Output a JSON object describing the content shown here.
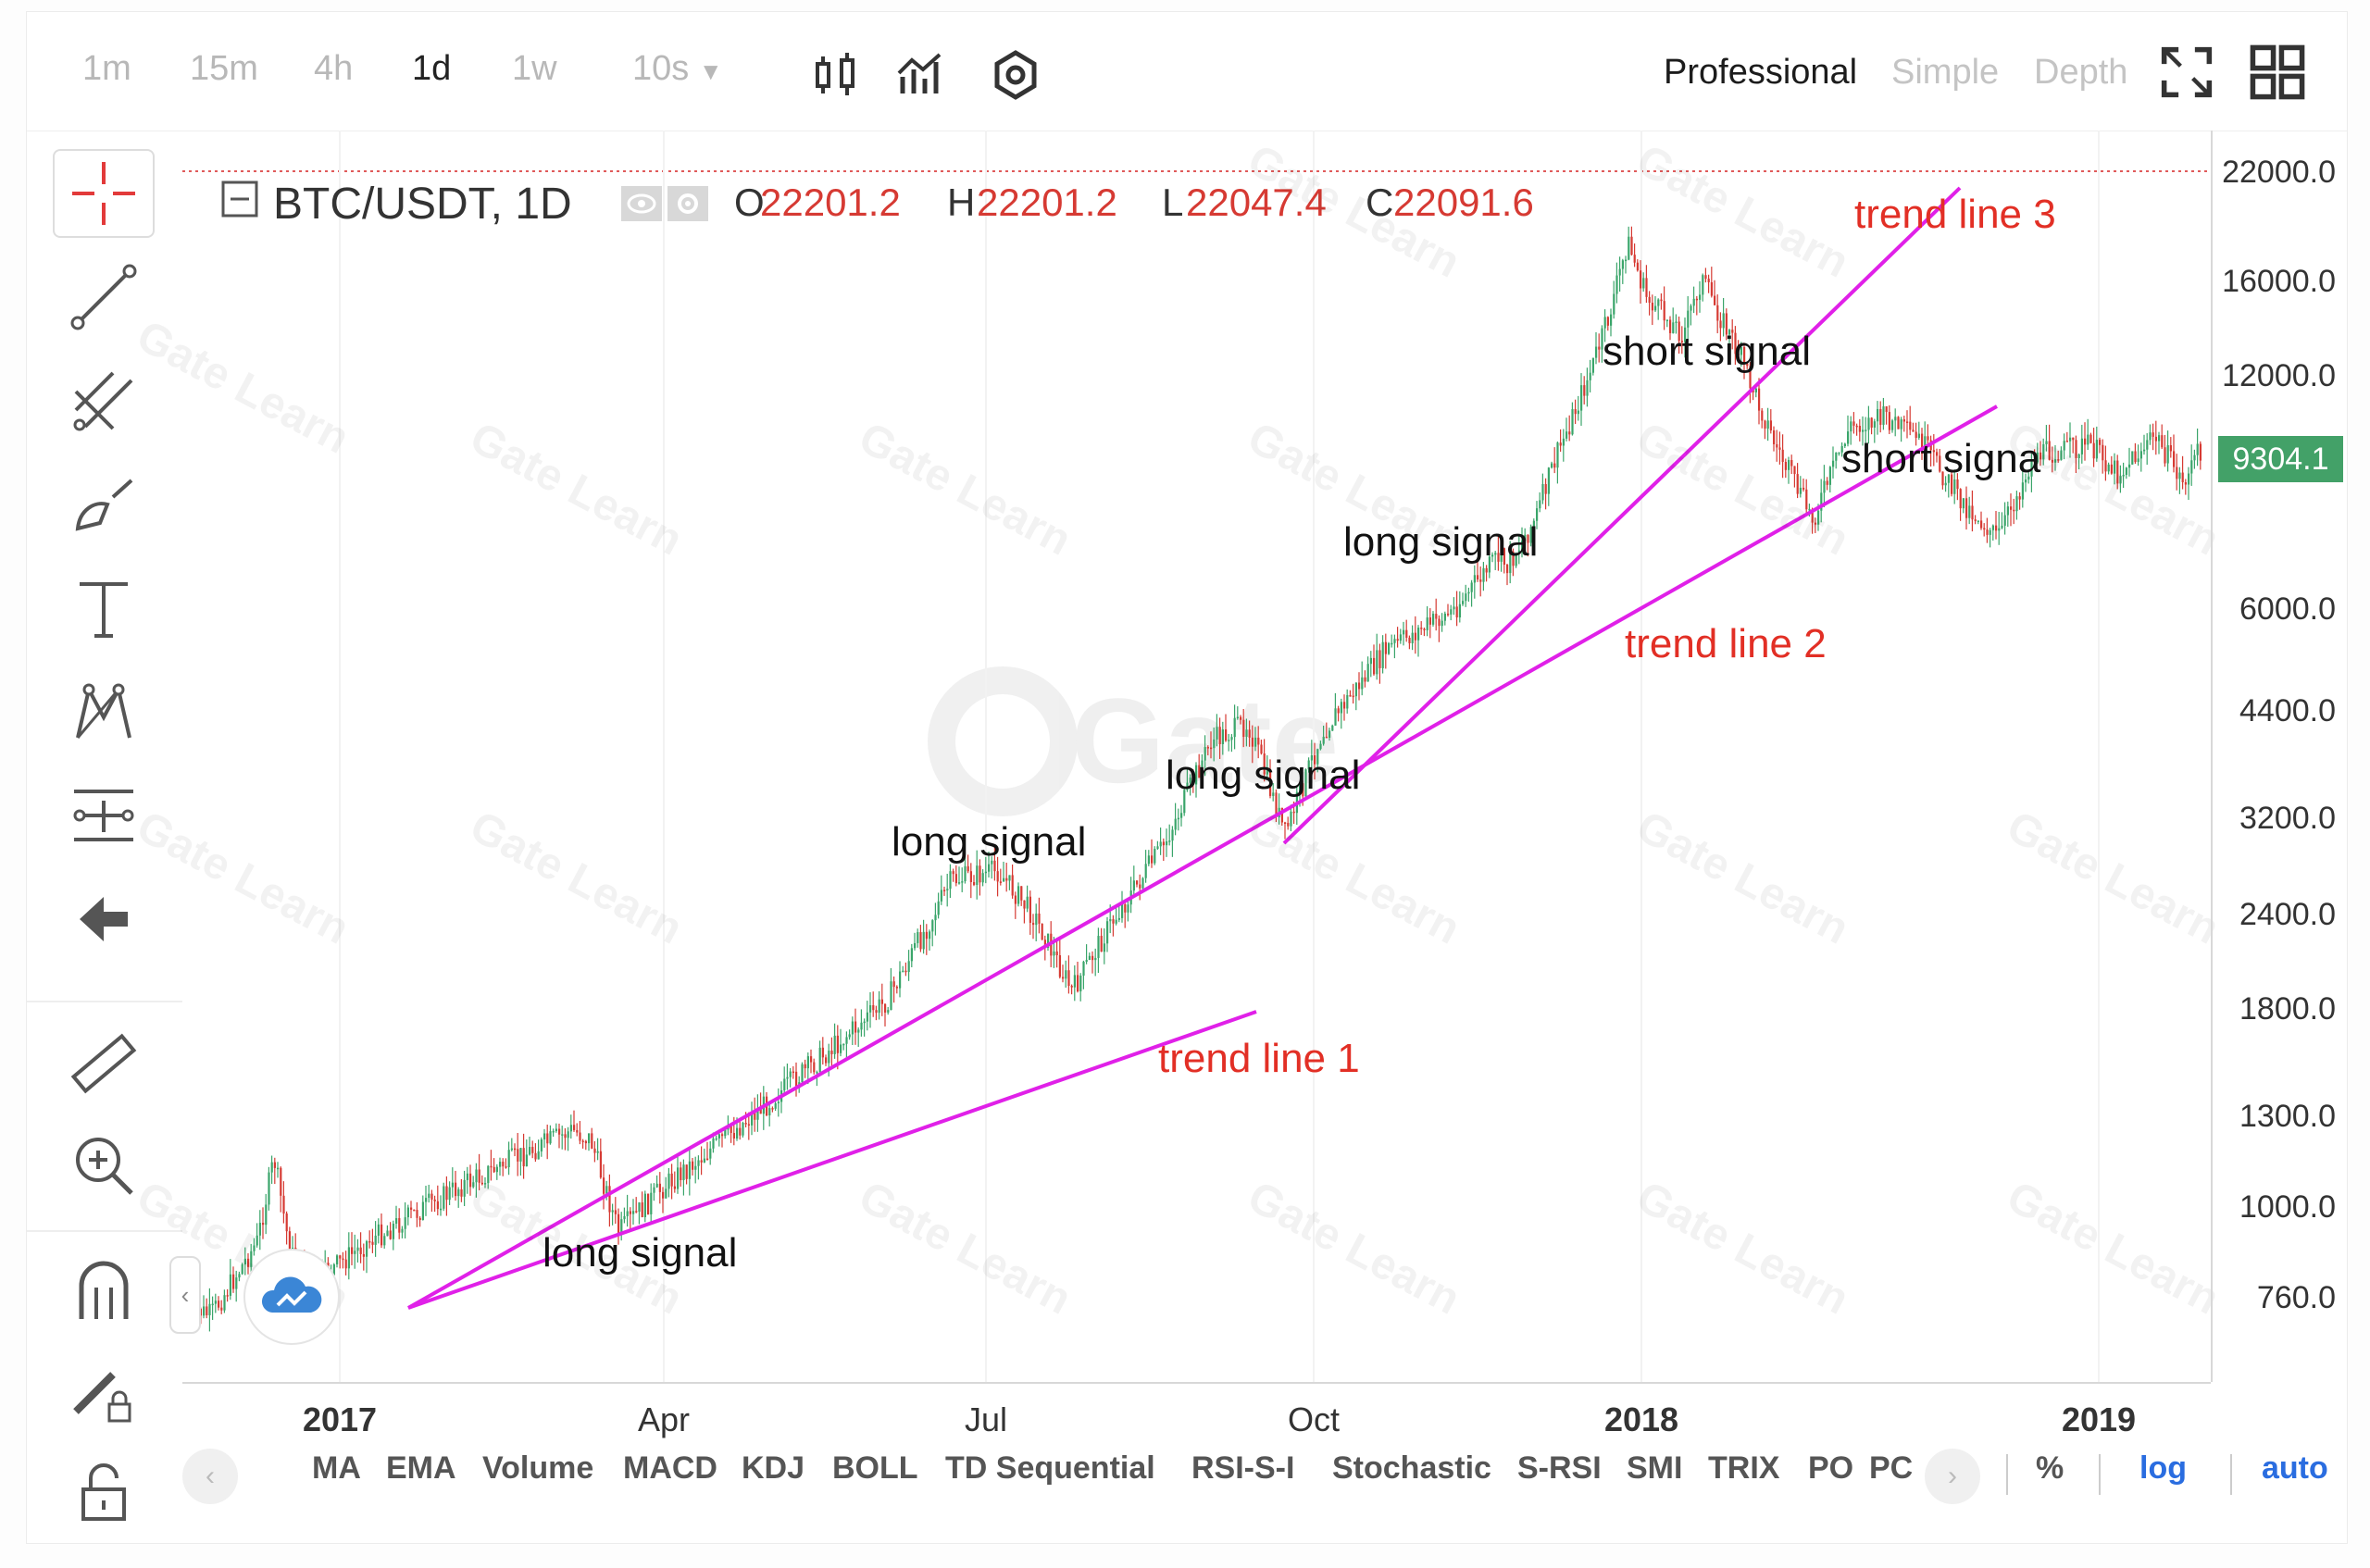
{
  "toolbar": {
    "intervals": [
      "1m",
      "15m",
      "4h",
      "1d",
      "1w"
    ],
    "active_interval": "1d",
    "interval_dropdown": "10s",
    "modes": [
      "Professional",
      "Simple",
      "Depth"
    ],
    "active_mode": "Professional"
  },
  "header": {
    "symbol": "BTC/USDT, 1D",
    "open_label": "O",
    "open": "22201.2",
    "high_label": "H",
    "high": "22201.2",
    "low_label": "L",
    "low": "22047.4",
    "close_label": "C",
    "close": "22091.6"
  },
  "chart": {
    "y_ticks": [
      "22000.0",
      "16000.0",
      "12000.0",
      "6000.0",
      "4400.0",
      "3200.0",
      "2400.0",
      "1800.0",
      "1300.0",
      "1000.0",
      "760.0"
    ],
    "current_price": "9304.1",
    "x_ticks": [
      "2017",
      "Apr",
      "Jul",
      "Oct",
      "2018",
      "2019"
    ],
    "watermark": "Gate Learn",
    "up_color": "#3aa56a",
    "down_color": "#d63a33",
    "trendline_color": "#e020e8"
  },
  "annotations": {
    "long_signal_1": "long signal",
    "long_signal_2": "long signal",
    "long_signal_3": "long signal",
    "long_signal_4": "long signal",
    "short_signal_1": "short signal",
    "short_signal_2": "short signa",
    "trend_line_1": "trend line 1",
    "trend_line_2": "trend line 2",
    "trend_line_3": "trend line 3"
  },
  "indicators": [
    "MA",
    "EMA",
    "Volume",
    "MACD",
    "KDJ",
    "BOLL",
    "TD Sequential",
    "RSI-S-I",
    "Stochastic",
    "S-RSI",
    "SMI",
    "TRIX",
    "PO",
    "PC"
  ],
  "scale_options": [
    "%",
    "log",
    "auto"
  ]
}
